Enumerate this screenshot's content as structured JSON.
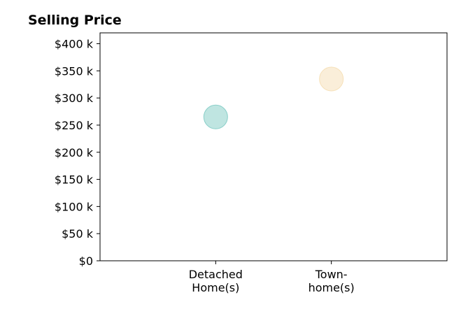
{
  "chart_data": {
    "type": "scatter",
    "title": "Selling Price",
    "xlabel": "",
    "ylabel": "",
    "categories": [
      [
        "Detached",
        "Home(s)"
      ],
      [
        "Town-",
        "home(s)"
      ]
    ],
    "xlim": [
      -1,
      2
    ],
    "ylim": [
      0,
      420000
    ],
    "y_ticks": [
      0,
      50000,
      100000,
      150000,
      200000,
      250000,
      300000,
      350000,
      400000
    ],
    "y_tick_labels": [
      "$0",
      "$50 k",
      "$100 k",
      "$150 k",
      "$200 k",
      "$250 k",
      "$300 k",
      "$350 k",
      "$400 k"
    ],
    "grid": false,
    "points": [
      {
        "category": "Detached Home(s)",
        "x": 0,
        "y": 265000,
        "color": "#80cbc4"
      },
      {
        "category": "Town-home(s)",
        "x": 1,
        "y": 335000,
        "color": "#f5deb3"
      }
    ]
  }
}
